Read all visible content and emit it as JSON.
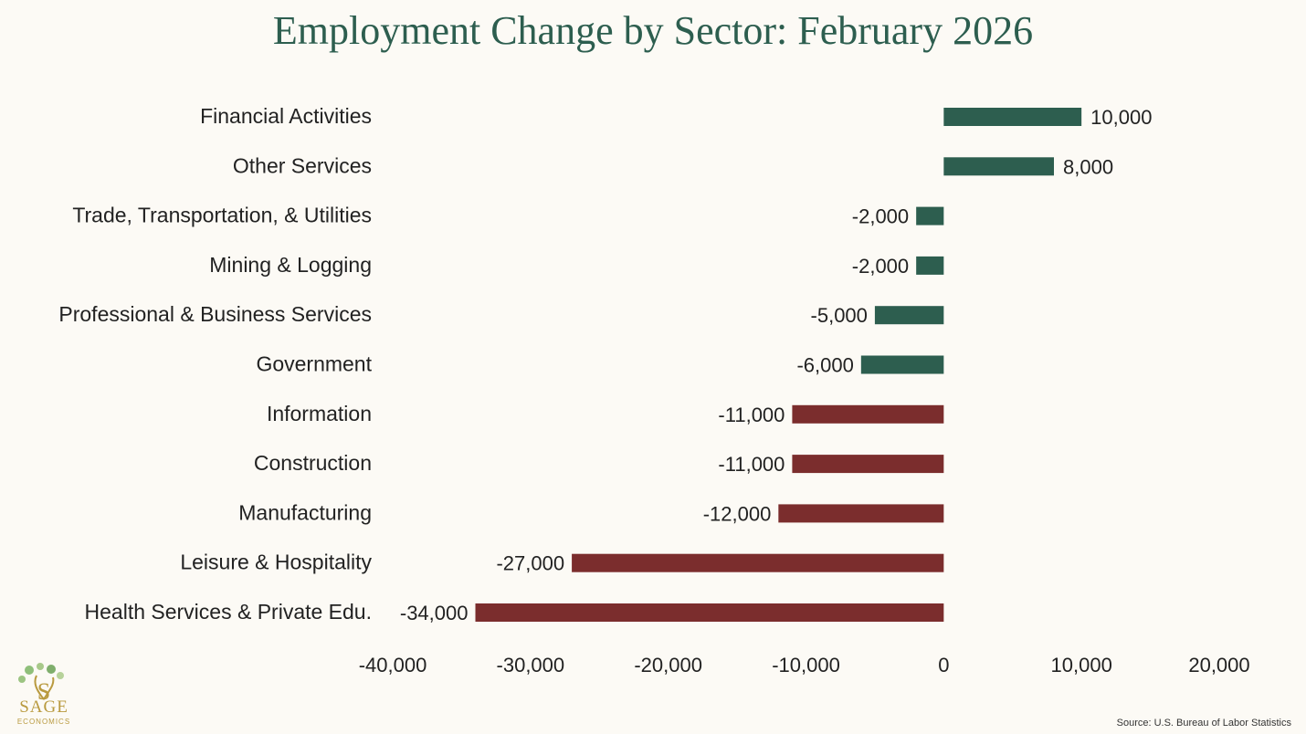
{
  "chart_data": {
    "type": "bar",
    "orientation": "horizontal",
    "title": "Employment Change by Sector: February 2026",
    "categories": [
      "Financial Activities",
      "Other Services",
      "Trade, Transportation, & Utilities",
      "Mining & Logging",
      "Professional & Business Services",
      "Government",
      "Information",
      "Construction",
      "Manufacturing",
      "Leisure & Hospitality",
      "Health Services & Private Edu."
    ],
    "values": [
      10000,
      8000,
      -2000,
      -2000,
      -5000,
      -6000,
      -11000,
      -11000,
      -12000,
      -27000,
      -34000
    ],
    "value_labels": [
      "10,000",
      "8,000",
      "-2,000",
      "-2,000",
      "-5,000",
      "-6,000",
      "-11,000",
      "-11,000",
      "-12,000",
      "-27,000",
      "-34,000"
    ],
    "xlim": [
      -40000,
      20000
    ],
    "xticks": [
      -40000,
      -30000,
      -20000,
      -10000,
      0,
      10000,
      20000
    ],
    "xtick_labels": [
      "-40,000",
      "-30,000",
      "-20,000",
      "-10,000",
      "0",
      "10,000",
      "20,000"
    ],
    "xlabel": "",
    "ylabel": "",
    "grid": false,
    "legend": null,
    "colors": {
      "green": "#2d5e4f",
      "red": "#7b2d2d"
    },
    "color_rule": "first six bars green, remaining bars red"
  },
  "logo": {
    "text": "SAGE",
    "subtext": "ECONOMICS"
  },
  "source": "Source: U.S. Bureau of Labor Statistics"
}
